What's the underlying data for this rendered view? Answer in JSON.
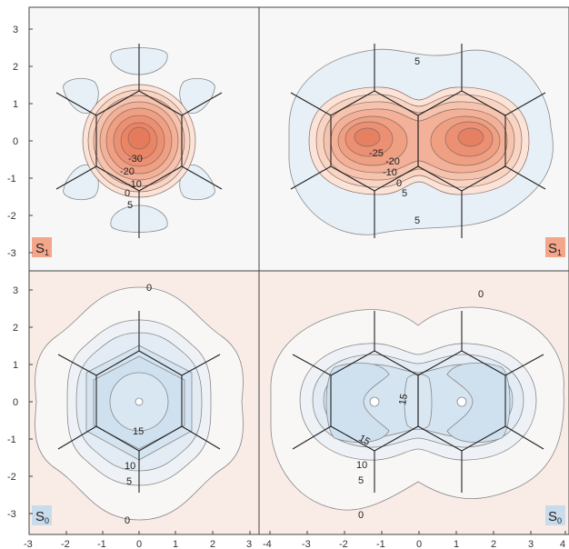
{
  "colors": {
    "excited_background": "#f7f7f7",
    "ground_background": "#f9ebe6",
    "negative_fill": "#eb8f74",
    "negative_light": "#f6cdbd",
    "positive_fill": "#c9deef",
    "positive_light": "#e7f0f7",
    "contour_line": "#777777",
    "bond_line": "#222222",
    "badge_excited": "#f4a68b",
    "badge_ground": "#c8dcec"
  },
  "axes": {
    "left_x_ticks": [
      "-3",
      "-2",
      "-1",
      "0",
      "1",
      "2",
      "3"
    ],
    "right_x_ticks": [
      "-4",
      "-3",
      "-2",
      "-1",
      "0",
      "1",
      "2",
      "3",
      "4"
    ],
    "top_y_ticks": [
      "3",
      "2",
      "1",
      "0",
      "-1",
      "-2",
      "-3"
    ],
    "bottom_y_ticks": [
      "3",
      "2",
      "1",
      "0",
      "-1",
      "-2",
      "-3"
    ]
  },
  "panels": {
    "top_left": {
      "state": "S",
      "state_sub": "1",
      "contour_labels": [
        "-30",
        "-20",
        "-10",
        "0",
        "5"
      ]
    },
    "top_right": {
      "state": "S",
      "state_sub": "1",
      "contour_labels": [
        "5",
        "-25",
        "-20",
        "-10",
        "0",
        "5",
        "5"
      ]
    },
    "bottom_left": {
      "state": "S",
      "state_sub": "0",
      "contour_labels": [
        "0",
        "15",
        "10",
        "5",
        "0"
      ]
    },
    "bottom_right": {
      "state": "S",
      "state_sub": "0",
      "contour_labels": [
        "0",
        "15",
        "15",
        "10",
        "5",
        "0"
      ]
    }
  }
}
